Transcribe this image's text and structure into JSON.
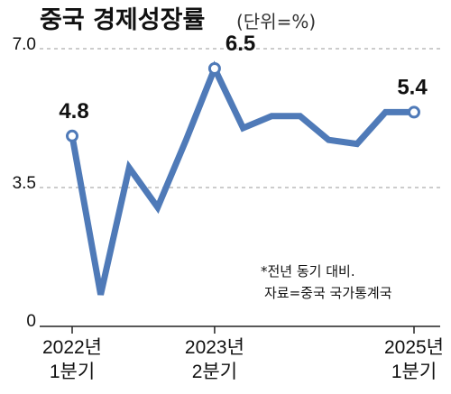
{
  "chart_data": {
    "type": "line",
    "title": "중국 경제성장률",
    "unit_note": "(단위=%)",
    "y_ticks": [
      "7.0",
      "3.5",
      "0"
    ],
    "ylim": [
      0,
      7.0
    ],
    "grid": "dashed horizontal",
    "x_labels": [
      {
        "line1": "2022년",
        "line2": "1분기"
      },
      {
        "line1": "2023년",
        "line2": "2분기"
      },
      {
        "line1": "2025년",
        "line2": "1분기"
      }
    ],
    "x_label_indices": [
      0,
      5,
      12
    ],
    "series": [
      {
        "color": "#4f7ab8",
        "values": [
          4.8,
          0.8,
          4.0,
          3.0,
          4.7,
          6.5,
          5.0,
          5.3,
          5.3,
          4.7,
          4.6,
          5.4,
          5.4
        ]
      }
    ],
    "data_labels": [
      {
        "index": 0,
        "text": "4.8"
      },
      {
        "index": 5,
        "text": "6.5"
      },
      {
        "index": 12,
        "text": "5.4"
      }
    ],
    "notes": [
      "*전년 동기 대비.",
      "자료=중국 국가통계국"
    ]
  }
}
